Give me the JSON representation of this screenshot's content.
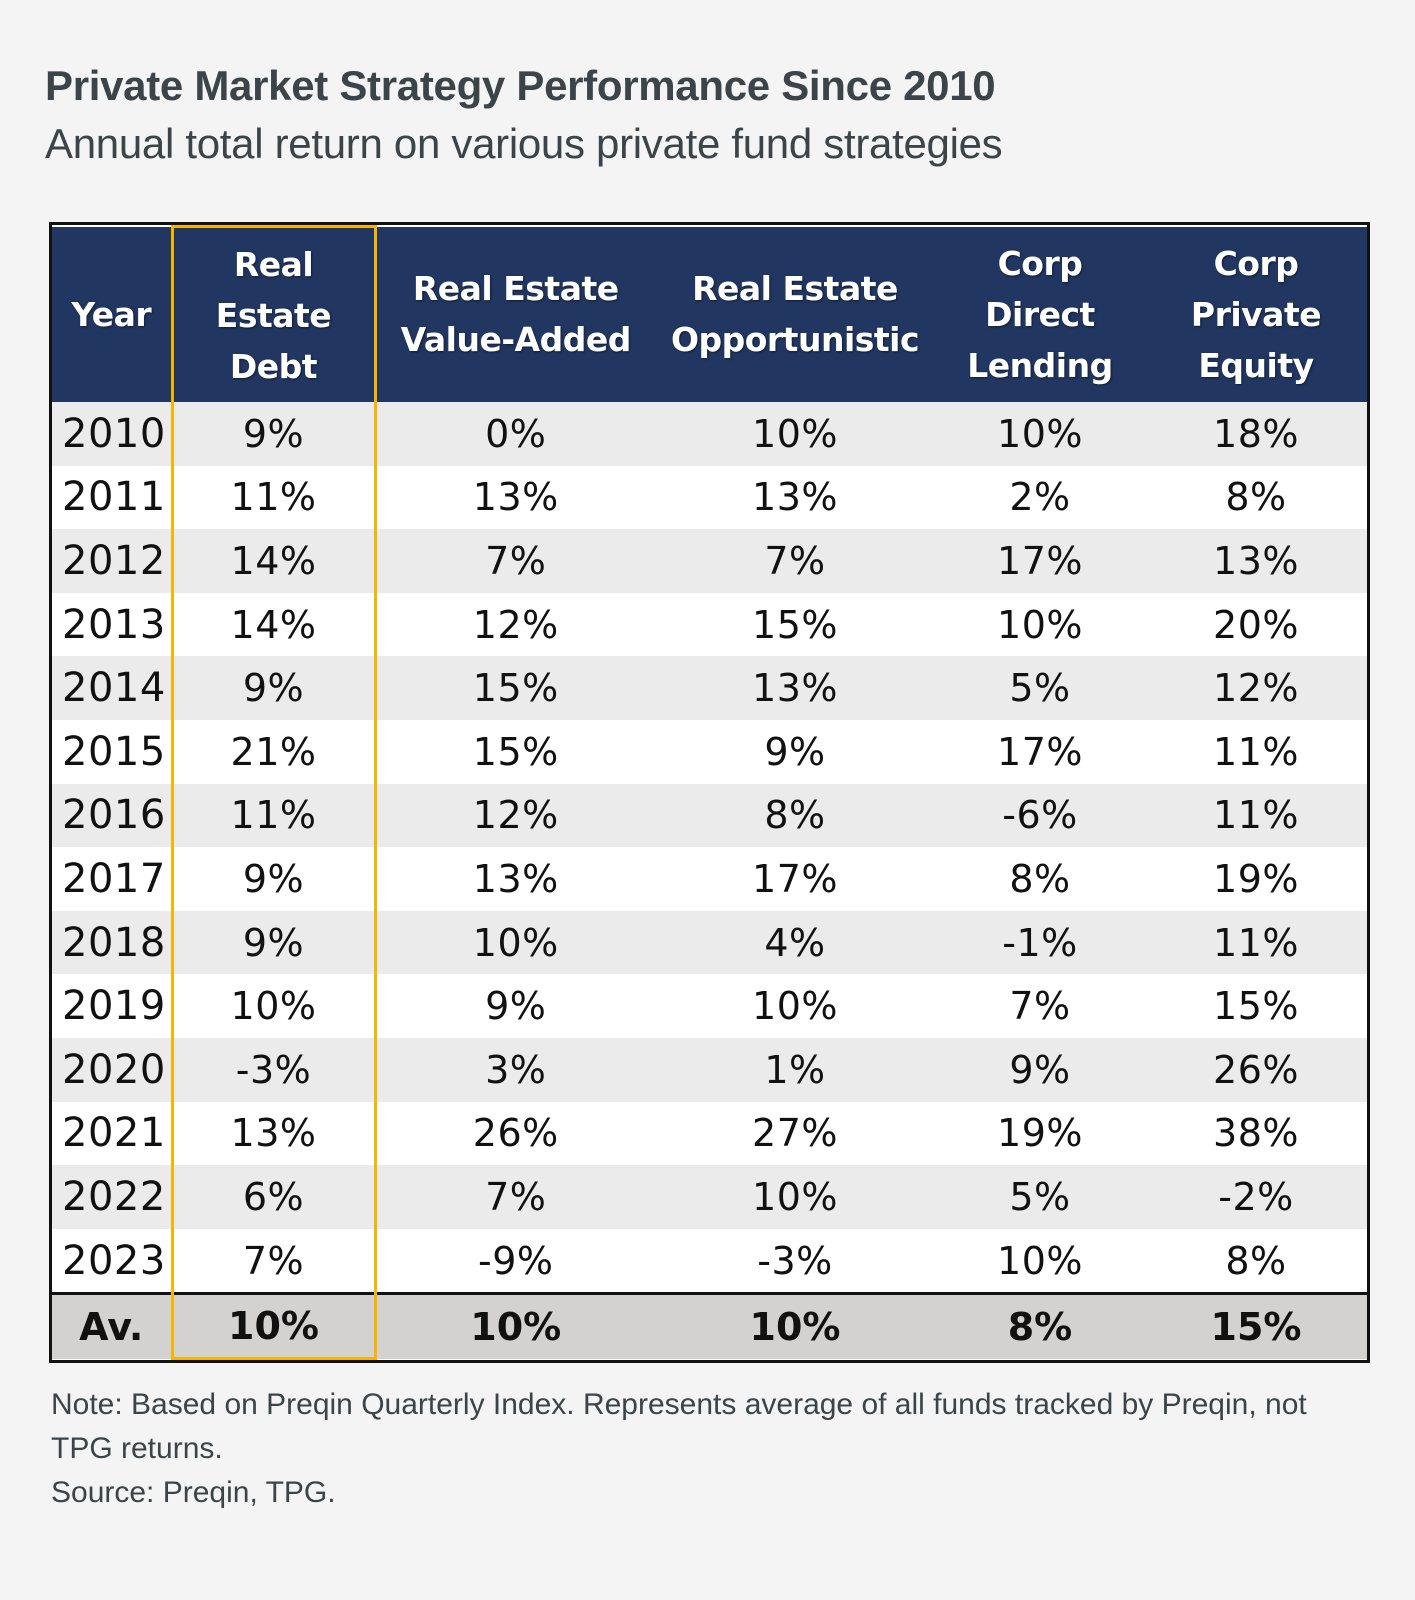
{
  "header": {
    "title": "Private Market Strategy Performance Since 2010",
    "subtitle": "Annual total return on various private fund strategies"
  },
  "highlight_color": "#f5b500",
  "header_bg_color": "#213762",
  "chart_data": {
    "type": "table",
    "title": "Private Market Strategy Performance Since 2010",
    "subtitle": "Annual total return on various private fund strategies",
    "columns": [
      {
        "key": "year",
        "label_lines": [
          "Year"
        ]
      },
      {
        "key": "red",
        "label_lines": [
          "Real",
          "Estate",
          "Debt"
        ],
        "highlighted": true
      },
      {
        "key": "reva",
        "label_lines": [
          "Real Estate",
          "Value-Added"
        ]
      },
      {
        "key": "reo",
        "label_lines": [
          "Real Estate",
          "Opportunistic"
        ]
      },
      {
        "key": "cdl",
        "label_lines": [
          "Corp",
          "Direct",
          "Lending"
        ]
      },
      {
        "key": "cpe",
        "label_lines": [
          "Corp",
          "Private",
          "Equity"
        ]
      }
    ],
    "rows": [
      {
        "year": "2010",
        "values": [
          "9%",
          "0%",
          "10%",
          "10%",
          "18%"
        ]
      },
      {
        "year": "2011",
        "values": [
          "11%",
          "13%",
          "13%",
          "2%",
          "8%"
        ]
      },
      {
        "year": "2012",
        "values": [
          "14%",
          "7%",
          "7%",
          "17%",
          "13%"
        ]
      },
      {
        "year": "2013",
        "values": [
          "14%",
          "12%",
          "15%",
          "10%",
          "20%"
        ]
      },
      {
        "year": "2014",
        "values": [
          "9%",
          "15%",
          "13%",
          "5%",
          "12%"
        ]
      },
      {
        "year": "2015",
        "values": [
          "21%",
          "15%",
          "9%",
          "17%",
          "11%"
        ]
      },
      {
        "year": "2016",
        "values": [
          "11%",
          "12%",
          "8%",
          "-6%",
          "11%"
        ]
      },
      {
        "year": "2017",
        "values": [
          "9%",
          "13%",
          "17%",
          "8%",
          "19%"
        ]
      },
      {
        "year": "2018",
        "values": [
          "9%",
          "10%",
          "4%",
          "-1%",
          "11%"
        ]
      },
      {
        "year": "2019",
        "values": [
          "10%",
          "9%",
          "10%",
          "7%",
          "15%"
        ]
      },
      {
        "year": "2020",
        "values": [
          "-3%",
          "3%",
          "1%",
          "9%",
          "26%"
        ]
      },
      {
        "year": "2021",
        "values": [
          "13%",
          "26%",
          "27%",
          "19%",
          "38%"
        ]
      },
      {
        "year": "2022",
        "values": [
          "6%",
          "7%",
          "10%",
          "5%",
          "-2%"
        ]
      },
      {
        "year": "2023",
        "values": [
          "7%",
          "-9%",
          "-3%",
          "10%",
          "8%"
        ]
      }
    ],
    "average": {
      "label": "Av.",
      "values": [
        "10%",
        "10%",
        "10%",
        "8%",
        "15%"
      ]
    }
  },
  "notes": {
    "note": "Note: Based on Preqin Quarterly Index. Represents average of all funds tracked by Preqin, not TPG returns.",
    "source": "Source: Preqin, TPG."
  }
}
